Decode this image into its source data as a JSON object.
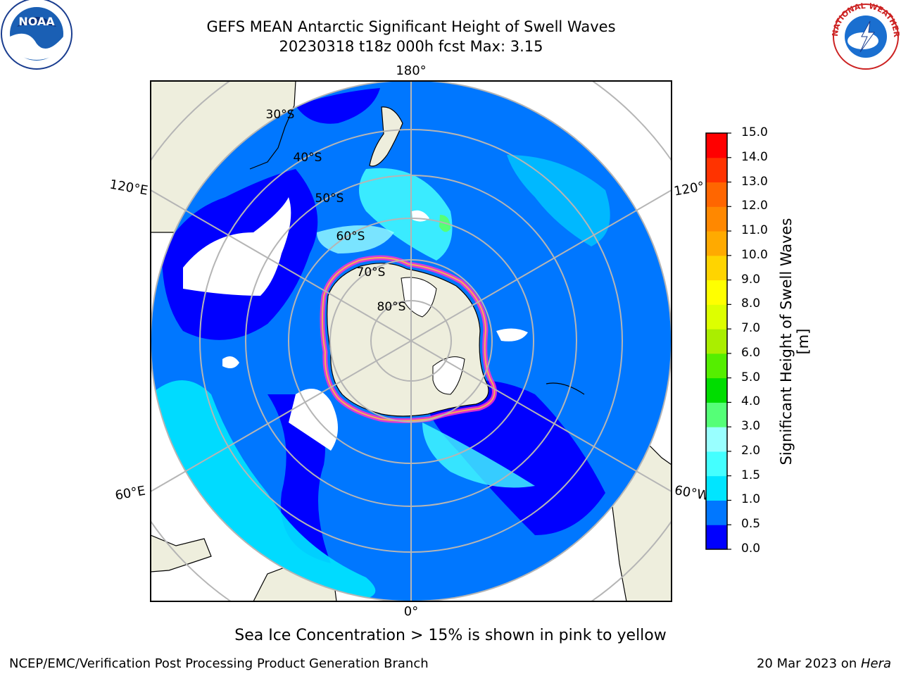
{
  "header": {
    "title_line1": "GEFS MEAN Antarctic Significant Height of Swell Waves",
    "title_line2": "20230318 t18z 000h fcst   Max: 3.15"
  },
  "logos": {
    "noaa_text": "NOAA",
    "nws_text": "NATIONAL WEATHER SERVICE"
  },
  "map": {
    "projection": "south-polar-stereographic",
    "longitude_labels": [
      {
        "text": "180°"
      },
      {
        "text": "120°E"
      },
      {
        "text": "120°"
      },
      {
        "text": "60°E"
      },
      {
        "text": "60°W"
      },
      {
        "text": "0°"
      }
    ],
    "latitude_labels": [
      "30°S",
      "40°S",
      "50°S",
      "60°S",
      "70°S",
      "80°S"
    ],
    "colors": {
      "land": "#eeeedd",
      "ocean_low": "#0000ff",
      "ocean_mid": "#0077ff",
      "ocean_high": "#00f0ff",
      "ice_edge": "#ff33cc",
      "grid": "#b5b5b5"
    }
  },
  "colorbar": {
    "ticks": [
      "0.0",
      "0.5",
      "1.0",
      "1.5",
      "2.0",
      "3.0",
      "4.0",
      "5.0",
      "6.0",
      "7.0",
      "8.0",
      "9.0",
      "10.0",
      "11.0",
      "12.0",
      "13.0",
      "14.0",
      "15.0"
    ],
    "colors": [
      "#0000ff",
      "#0077ff",
      "#00e5ff",
      "#44ffff",
      "#99ffff",
      "#55ff77",
      "#00dd00",
      "#55ee00",
      "#aaee00",
      "#ddff00",
      "#ffff00",
      "#ffd400",
      "#ffaa00",
      "#ff8800",
      "#ff6600",
      "#ff3300",
      "#ff0000"
    ],
    "label": "Significant Height of Swell Waves [m]"
  },
  "note": "Sea Ice Concentration > 15% is shown in pink to yellow",
  "footer": {
    "left": "NCEP/EMC/Verification Post Processing Product Generation Branch",
    "right_date": "20 Mar 2023 on ",
    "right_host": "Hera"
  }
}
